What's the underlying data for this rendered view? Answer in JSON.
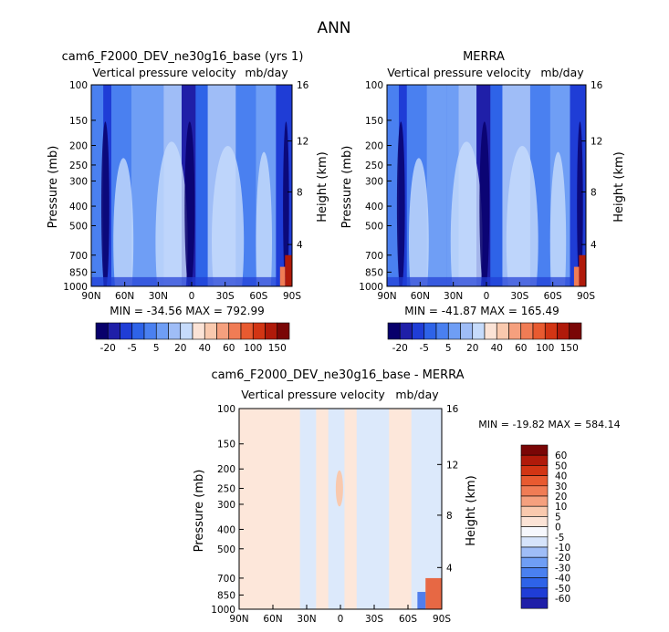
{
  "figure_title": "ANN",
  "colors": {
    "blues": [
      "#08006b",
      "#1f1fa8",
      "#1f3dd6",
      "#2e63e8",
      "#4a80f0",
      "#6f9ef5",
      "#9fbdf7",
      "#c6dbfb",
      "#eef4ff"
    ],
    "reds": [
      "#fbe3d6",
      "#f9c9ae",
      "#f5a07e",
      "#f07c55",
      "#e85a30",
      "#d23514",
      "#b01a0a",
      "#7a0606"
    ],
    "diff_base": "#dce9fb",
    "diff_warm": "#fde7da"
  },
  "panels": [
    {
      "title": "cam6_F2000_DEV_ne30g16_base (yrs 1)",
      "var_label": "Vertical pressure velocity",
      "units": "mb/day",
      "ylabel": "Pressure (mb)",
      "ylabel_right": "Height (km)",
      "min_max": "MIN = -34.56   MAX = 792.99"
    },
    {
      "title": "MERRA",
      "var_label": "Vertical pressure velocity",
      "units": "mb/day",
      "ylabel": "Pressure (mb)",
      "ylabel_right": "Height (km)",
      "min_max": "MIN = -41.87   MAX = 165.49"
    },
    {
      "title": "cam6_F2000_DEV_ne30g16_base - MERRA",
      "var_label": "Vertical pressure velocity",
      "units": "mb/day",
      "ylabel": "Pressure (mb)",
      "ylabel_right": "Height (km)",
      "min_max": "MIN = -19.82   MAX = 584.14"
    }
  ],
  "chart_data": [
    {
      "type": "heatmap",
      "title": "cam6_F2000_DEV_ne30g16_base (yrs 1)",
      "x_ticks": [
        "90N",
        "60N",
        "30N",
        "0",
        "30S",
        "60S",
        "90S"
      ],
      "y_ticks": [
        "100",
        "150",
        "200",
        "250",
        "300",
        "400",
        "500",
        "700",
        "850",
        "1000"
      ],
      "y_ticks_right": [
        "16",
        "12",
        "8",
        "4"
      ],
      "ylim": [
        1000,
        100
      ],
      "colorbar_labels": [
        "-20",
        "-5",
        "5",
        "20",
        "40",
        "60",
        "100",
        "150"
      ],
      "min": -34.56,
      "max": 792.99
    },
    {
      "type": "heatmap",
      "title": "MERRA",
      "x_ticks": [
        "90N",
        "60N",
        "30N",
        "0",
        "30S",
        "60S",
        "90S"
      ],
      "y_ticks": [
        "100",
        "150",
        "200",
        "250",
        "300",
        "400",
        "500",
        "700",
        "850",
        "1000"
      ],
      "y_ticks_right": [
        "16",
        "12",
        "8",
        "4"
      ],
      "ylim": [
        1000,
        100
      ],
      "colorbar_labels": [
        "-20",
        "-5",
        "5",
        "20",
        "40",
        "60",
        "100",
        "150"
      ],
      "min": -41.87,
      "max": 165.49
    },
    {
      "type": "heatmap",
      "title": "cam6_F2000_DEV_ne30g16_base - MERRA",
      "x_ticks": [
        "90N",
        "60N",
        "30N",
        "0",
        "30S",
        "60S",
        "90S"
      ],
      "y_ticks": [
        "100",
        "150",
        "200",
        "250",
        "300",
        "400",
        "500",
        "700",
        "850",
        "1000"
      ],
      "y_ticks_right": [
        "16",
        "12",
        "8",
        "4"
      ],
      "ylim": [
        1000,
        100
      ],
      "colorbar_labels": [
        "60",
        "50",
        "40",
        "30",
        "20",
        "10",
        "5",
        "0",
        "-5",
        "-10",
        "-20",
        "-30",
        "-40",
        "-50",
        "-60"
      ],
      "min": -19.82,
      "max": 584.14
    }
  ]
}
